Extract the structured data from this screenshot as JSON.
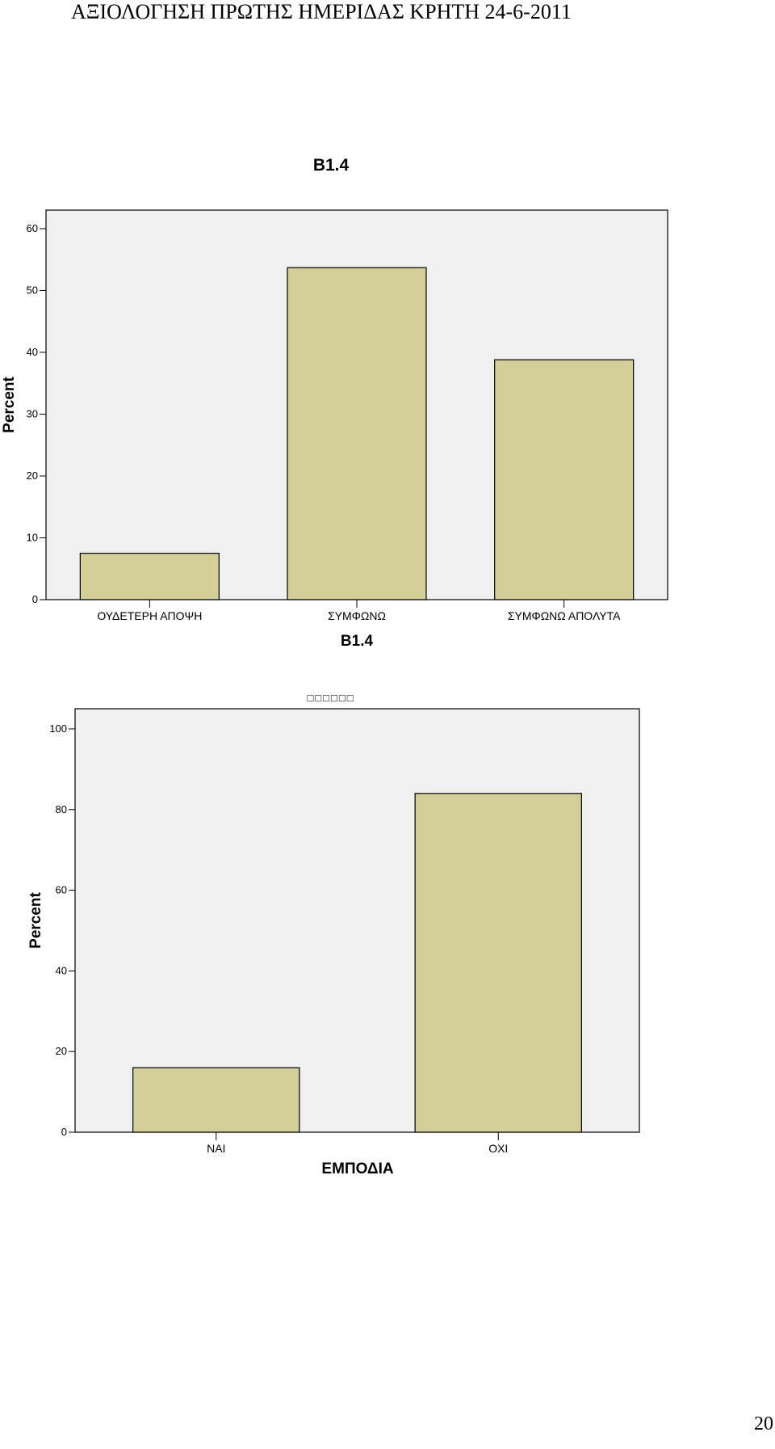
{
  "header": {
    "title": "ΑΞΙΟΛΟΓΗΣΗ ΠΡΩΤΗΣ ΗΜΕΡΙΔΑΣ ΚΡΗΤΗ 24-6-2011"
  },
  "page": {
    "number": "20"
  },
  "chart_data": [
    {
      "type": "bar",
      "title": "B1.4",
      "xlabel": "B1.4",
      "ylabel": "Percent",
      "categories": [
        "ΟΥΔΕΤΕΡΗ ΑΠΟΨΗ",
        "ΣΥΜΦΩΝΩ",
        "ΣΥΜΦΩΝΩ ΑΠΟΛΥΤΑ"
      ],
      "values": [
        7.5,
        53.7,
        38.8
      ],
      "ylim": [
        0,
        63
      ],
      "yticks": [
        0,
        10,
        20,
        30,
        40,
        50,
        60
      ],
      "bar_color": "#d4cf98",
      "plot_bg": "#f0f0f0",
      "grid": false
    },
    {
      "type": "bar",
      "title": "",
      "garbled_title": "□□□□□□",
      "xlabel": "ΕΜΠΟΔΙΑ",
      "ylabel": "Percent",
      "categories": [
        "ΝΑΙ",
        "ΟΧΙ"
      ],
      "values": [
        16,
        84
      ],
      "ylim": [
        0,
        105
      ],
      "yticks": [
        0,
        20,
        40,
        60,
        80,
        100
      ],
      "bar_color": "#d4cf98",
      "plot_bg": "#f0f0f0",
      "grid": false
    }
  ]
}
